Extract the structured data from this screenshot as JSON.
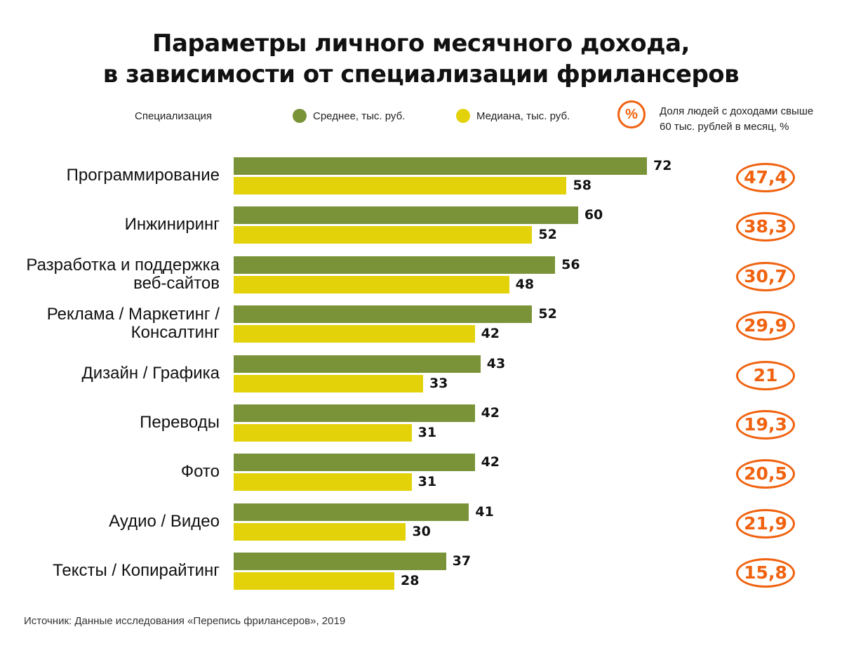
{
  "chart_data": {
    "type": "bar",
    "orientation": "horizontal",
    "title": "Параметры личного месячного дохода, в зависимости от специализации фрилансеров",
    "title_lines": [
      "Параметры личного месячного дохода,",
      "в зависимости от специализации фрилансеров"
    ],
    "category_header": "Специализация",
    "categories": [
      "Программирование",
      "Инжиниринг",
      "Разработка и поддержка веб-сайтов",
      "Реклама / Маркетинг / Консалтинг",
      "Дизайн / Графика",
      "Переводы",
      "Фото",
      "Аудио / Видео",
      "Тексты / Копирайтинг"
    ],
    "category_lines": [
      [
        "Программирование"
      ],
      [
        "Инжиниринг"
      ],
      [
        "Разработка и поддержка",
        "веб-сайтов"
      ],
      [
        "Реклама / Маркетинг /",
        "Консалтинг"
      ],
      [
        "Дизайн / Графика"
      ],
      [
        "Переводы"
      ],
      [
        "Фото"
      ],
      [
        "Аудио / Видео"
      ],
      [
        "Тексты / Копирайтинг"
      ]
    ],
    "series": [
      {
        "name": "Среднее, тыс. руб.",
        "color": "#7a9339",
        "values": [
          72,
          60,
          56,
          52,
          43,
          42,
          42,
          41,
          37
        ]
      },
      {
        "name": "Медиана, тыс. руб.",
        "color": "#e3d20a",
        "values": [
          58,
          52,
          48,
          42,
          33,
          31,
          31,
          30,
          28
        ]
      }
    ],
    "share_over_60k": {
      "name": "Доля людей с доходами свыше 60 тыс. рублей в месяц, %",
      "name_lines": [
        "Доля людей с доходами свыше",
        "60 тыс. рублей в месяц, %"
      ],
      "icon_label": "%",
      "color": "#f0620f",
      "values": [
        "47,4",
        "38,3",
        "30,7",
        "29,9",
        "21",
        "19,3",
        "20,5",
        "21,9",
        "15,8"
      ]
    },
    "xlim": [
      0,
      72
    ],
    "grid": false,
    "legend_position": "top",
    "source": "Источник: Данные исследования «Перепись фрилансеров», 2019"
  }
}
